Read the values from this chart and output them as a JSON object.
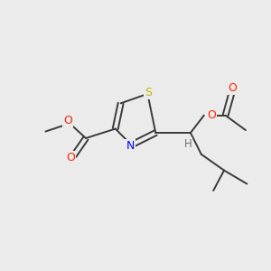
{
  "background_color": "#ebebeb",
  "bond_color": "#3a3a3a",
  "atoms": {
    "S": {
      "color": "#c8b400"
    },
    "N": {
      "color": "#0000ff"
    },
    "O": {
      "color": "#ff2200"
    },
    "H": {
      "color": "#707070"
    }
  },
  "figsize": [
    3.0,
    3.0
  ],
  "dpi": 100
}
